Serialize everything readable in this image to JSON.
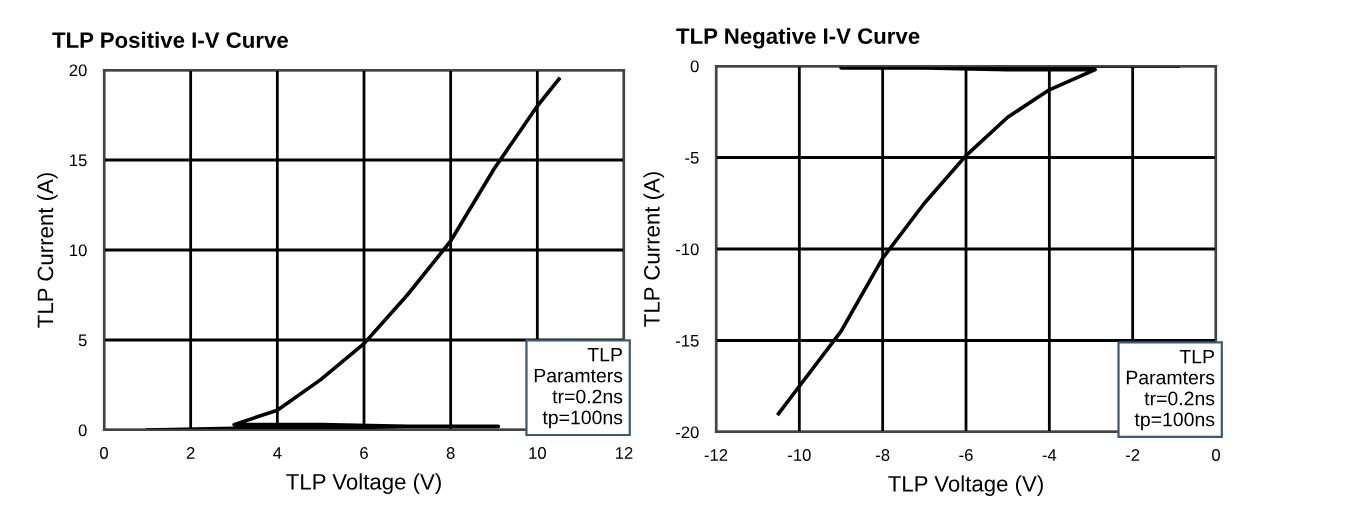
{
  "chart_data": [
    {
      "type": "line",
      "title": "TLP Positive I-V Curve",
      "xlabel": "TLP Voltage (V)",
      "ylabel": "TLP Current (A)",
      "xlim": [
        0,
        12
      ],
      "ylim": [
        0,
        20
      ],
      "xticks": [
        0,
        2,
        4,
        6,
        8,
        10,
        12
      ],
      "yticks": [
        0,
        5,
        10,
        15,
        20
      ],
      "grid": true,
      "annotations": [
        "TLP\nParamters\ntr=0.2ns\ntp=100ns"
      ],
      "series": [
        {
          "color": "#000000",
          "x": [
            1,
            3,
            5,
            7,
            9.1,
            7,
            5,
            3,
            4,
            5,
            6,
            7,
            8,
            9,
            10,
            10.5
          ],
          "values": [
            0,
            0.1,
            0.1,
            0.2,
            0.2,
            0.2,
            0.3,
            0.3,
            1.1,
            2.8,
            4.8,
            7.5,
            10.5,
            14.5,
            18,
            19.5
          ]
        }
      ]
    },
    {
      "type": "line",
      "title": "TLP Negative I-V Curve",
      "xlabel": "TLP Voltage (V)",
      "ylabel": "TLP Current (A)",
      "xlim": [
        -12,
        0
      ],
      "ylim": [
        -20,
        0
      ],
      "xticks": [
        -12,
        -10,
        -8,
        -6,
        -4,
        -2,
        0
      ],
      "yticks": [
        -20,
        -15,
        -10,
        -5,
        0
      ],
      "grid": true,
      "annotations": [
        "TLP\nParamters\ntr=0.2ns\ntp=100ns"
      ],
      "series": [
        {
          "color": "#000000",
          "x": [
            -0.9,
            -3,
            -5,
            -7,
            -9,
            -7,
            -5,
            -2.9,
            -4,
            -5,
            -6,
            -7,
            -8,
            -9,
            -10,
            -10.5
          ],
          "values": [
            0,
            0,
            0,
            0,
            -0.1,
            -0.1,
            -0.2,
            -0.2,
            -1.3,
            -2.8,
            -4.9,
            -7.5,
            -10.5,
            -14.5,
            -17.5,
            -19
          ]
        }
      ]
    }
  ]
}
